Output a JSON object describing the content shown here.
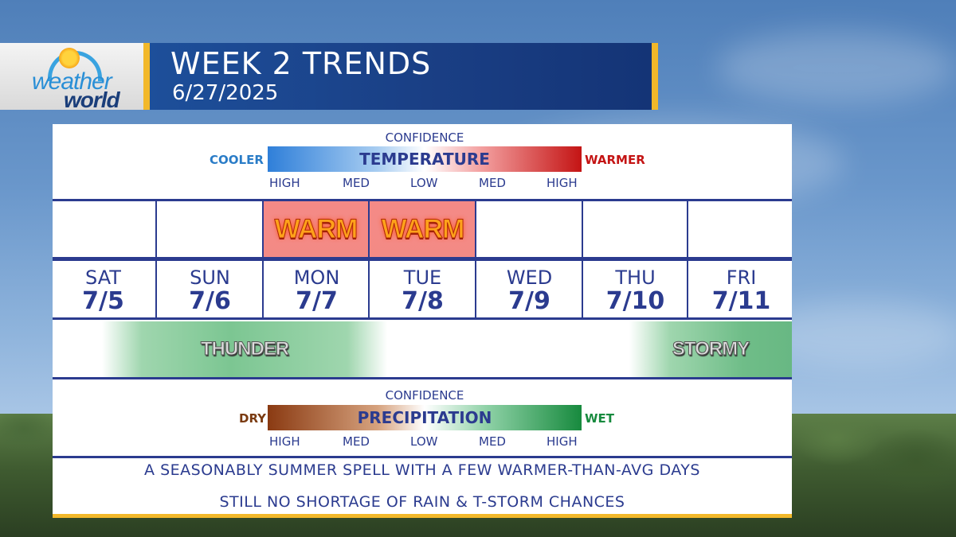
{
  "header": {
    "logo_top": "weather",
    "logo_bottom": "world",
    "title": "WEEK 2 TRENDS",
    "date": "6/27/2025"
  },
  "temperature_scale": {
    "confidence_label": "CONFIDENCE",
    "title": "TEMPERATURE",
    "left_label": "COOLER",
    "right_label": "WARMER",
    "ticks": [
      "HIGH",
      "MED",
      "LOW",
      "MED",
      "HIGH"
    ]
  },
  "temperature_row": [
    "",
    "",
    "WARM",
    "WARM",
    "",
    "",
    ""
  ],
  "days": [
    {
      "name": "SAT",
      "date": "7/5"
    },
    {
      "name": "SUN",
      "date": "7/6"
    },
    {
      "name": "MON",
      "date": "7/7"
    },
    {
      "name": "TUE",
      "date": "7/8"
    },
    {
      "name": "WED",
      "date": "7/9"
    },
    {
      "name": "THU",
      "date": "7/10"
    },
    {
      "name": "FRI",
      "date": "7/11"
    }
  ],
  "precip_row": {
    "band1": "THUNDER",
    "band2": "STORMY"
  },
  "precip_scale": {
    "confidence_label": "CONFIDENCE",
    "title": "PRECIPITATION",
    "left_label": "DRY",
    "right_label": "WET",
    "ticks": [
      "HIGH",
      "MED",
      "LOW",
      "MED",
      "HIGH"
    ]
  },
  "notes": [
    "A SEASONABLY SUMMER SPELL WITH A FEW WARMER-THAN-AVG DAYS",
    "STILL NO SHORTAGE OF RAIN & T-STORM CHANCES"
  ],
  "colors": {
    "navy": "#2b3b8f",
    "gold": "#f2b82a",
    "cooler": "#2a7cc7",
    "warmer": "#c41414",
    "dry": "#7a3a10",
    "wet": "#178a3e"
  }
}
